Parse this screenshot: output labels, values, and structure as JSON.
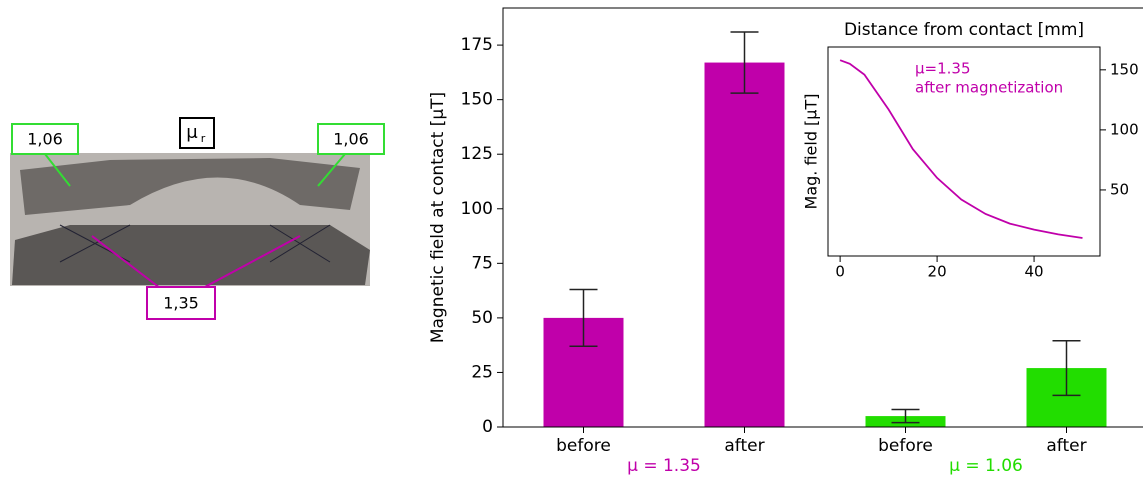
{
  "photo_labels": {
    "left_green": "1,06",
    "right_green": "1,06",
    "mu_symbol": "μ",
    "mu_subscript": "r",
    "magenta": "1,35"
  },
  "chart_data": [
    {
      "type": "bar",
      "y_label": "Magnetic field at contact [μT]",
      "categories": [
        "before",
        "after",
        "before",
        "after"
      ],
      "values": [
        50,
        167,
        5,
        27
      ],
      "errors": [
        13,
        14,
        3,
        12.5
      ],
      "colors": [
        "#c000aa",
        "#c000aa",
        "#22dd00",
        "#22dd00"
      ],
      "group_labels": [
        {
          "text": "μ = 1.35",
          "color": "#c000aa"
        },
        {
          "text": "μ = 1.06",
          "color": "#22dd00"
        }
      ],
      "ylim": [
        0,
        192
      ],
      "yticks": [
        0,
        25,
        50,
        75,
        100,
        125,
        150,
        175
      ]
    },
    {
      "type": "line",
      "title": "Distance from contact [mm]",
      "y_label": "Mag. field [μT]",
      "annotation": [
        "μ=1.35",
        "after magnetization"
      ],
      "color": "#c000aa",
      "x": [
        0,
        2,
        5,
        10,
        15,
        20,
        25,
        30,
        35,
        40,
        45,
        50
      ],
      "values": [
        158,
        155,
        146,
        117,
        84,
        60,
        42,
        30,
        22,
        17,
        13,
        10
      ],
      "xlim": [
        -2.5,
        53.6
      ],
      "ylim": [
        -5,
        169
      ],
      "xticks": [
        0,
        20,
        40
      ],
      "yticks": [
        50,
        100,
        150
      ]
    }
  ]
}
